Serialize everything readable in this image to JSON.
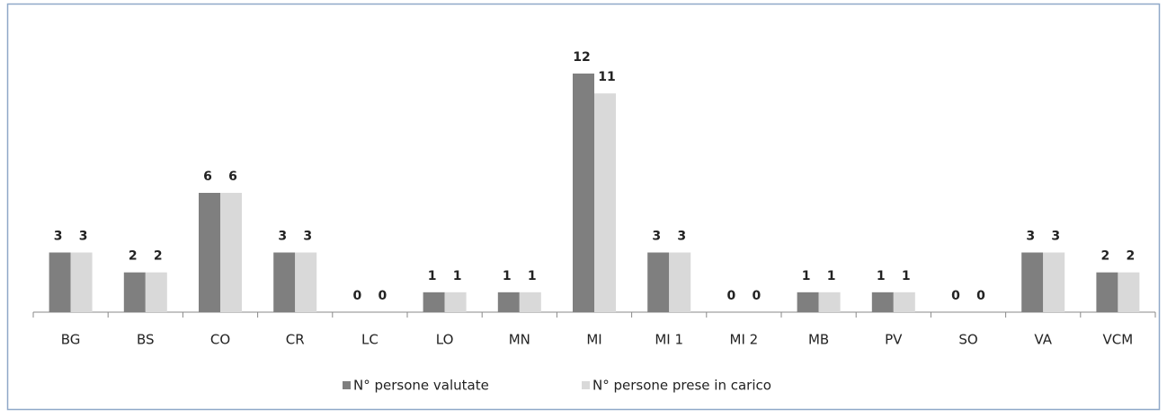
{
  "chart_data": {
    "type": "bar",
    "categories": [
      "BG",
      "BS",
      "CO",
      "CR",
      "LC",
      "LO",
      "MN",
      "MI",
      "MI 1",
      "MI 2",
      "MB",
      "PV",
      "SO",
      "VA",
      "VCM"
    ],
    "series": [
      {
        "name": "N° persone valutate",
        "color": "#7f7f7f",
        "values": [
          3,
          2,
          6,
          3,
          0,
          1,
          1,
          12,
          3,
          0,
          1,
          1,
          0,
          3,
          2
        ]
      },
      {
        "name": "N° persone prese in carico",
        "color": "#d9d9d9",
        "values": [
          3,
          2,
          6,
          3,
          0,
          1,
          1,
          11,
          3,
          0,
          1,
          1,
          0,
          3,
          2
        ]
      }
    ],
    "legend": "bottom"
  }
}
